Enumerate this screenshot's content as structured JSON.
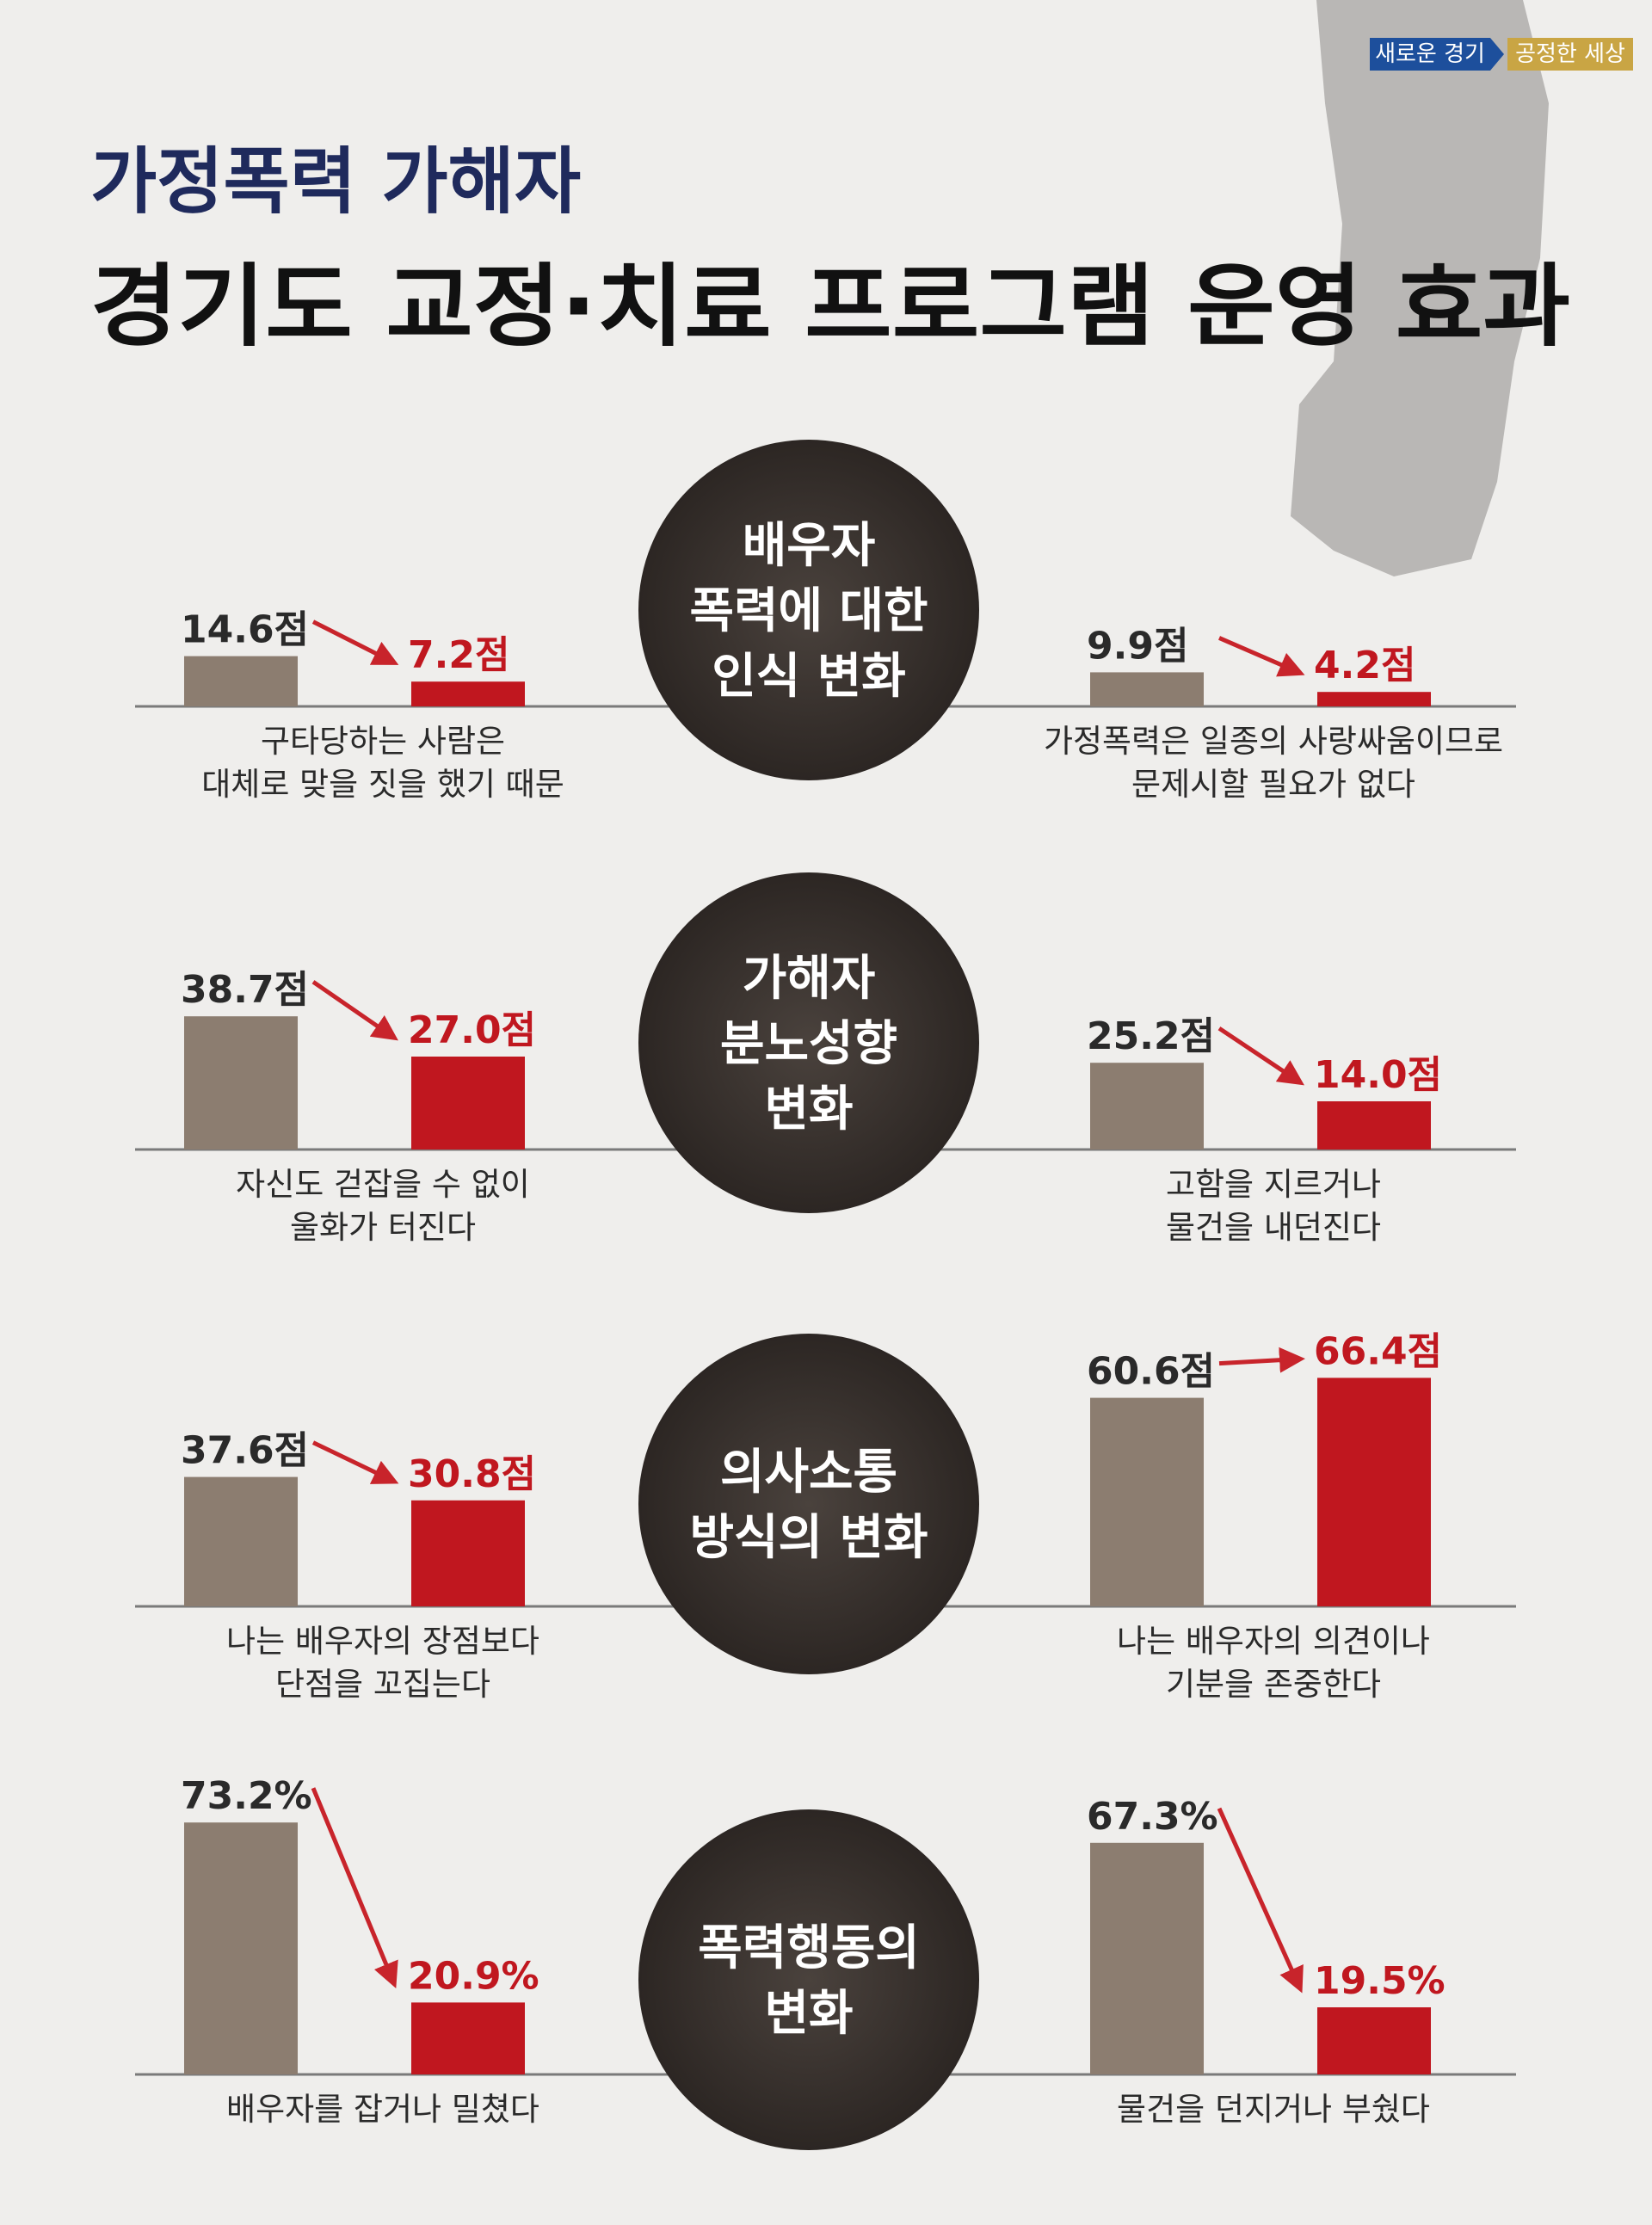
{
  "badge": {
    "left": "새로운 경기",
    "right": "공정한 세상"
  },
  "header": {
    "subtitle": "가정폭력 가해자",
    "title": "경기도 교정·치료 프로그램 운영 효과"
  },
  "sections": [
    {
      "circle": [
        "배우자",
        "폭력에 대한",
        "인식 변화"
      ],
      "charts": [
        {
          "values": [
            14.6,
            7.2
          ],
          "value_labels": [
            "14.6점",
            "7.2점"
          ],
          "caption": [
            "구타당하는 사람은",
            "대체로 맞을 짓을 했기 때문"
          ]
        },
        {
          "values": [
            9.9,
            4.2
          ],
          "value_labels": [
            "9.9점",
            "4.2점"
          ],
          "caption": [
            "가정폭력은 일종의 사랑싸움이므로",
            "문제시할 필요가 없다"
          ]
        }
      ]
    },
    {
      "circle": [
        "가해자",
        "분노성향",
        "변화"
      ],
      "charts": [
        {
          "values": [
            38.7,
            27.0
          ],
          "value_labels": [
            "38.7점",
            "27.0점"
          ],
          "caption": [
            "자신도 걷잡을 수 없이",
            "울화가 터진다"
          ]
        },
        {
          "values": [
            25.2,
            14.0
          ],
          "value_labels": [
            "25.2점",
            "14.0점"
          ],
          "caption": [
            "고함을 지르거나",
            "물건을 내던진다"
          ]
        }
      ]
    },
    {
      "circle": [
        "의사소통",
        "방식의 변화"
      ],
      "charts": [
        {
          "values": [
            37.6,
            30.8
          ],
          "value_labels": [
            "37.6점",
            "30.8점"
          ],
          "caption": [
            "나는 배우자의 장점보다",
            "단점을 꼬집는다"
          ]
        },
        {
          "values": [
            60.6,
            66.4
          ],
          "value_labels": [
            "60.6점",
            "66.4점"
          ],
          "caption": [
            "나는 배우자의 의견이나",
            "기분을 존중한다"
          ]
        }
      ]
    },
    {
      "circle": [
        "폭력행동의",
        "변화"
      ],
      "charts": [
        {
          "values": [
            73.2,
            20.9
          ],
          "value_labels": [
            "73.2%",
            "20.9%"
          ],
          "caption": [
            "배우자를 잡거나 밀쳤다"
          ]
        },
        {
          "values": [
            67.3,
            19.5
          ],
          "value_labels": [
            "67.3%",
            "19.5%"
          ],
          "caption": [
            "물건을 던지거나 부쉈다"
          ]
        }
      ]
    }
  ]
}
